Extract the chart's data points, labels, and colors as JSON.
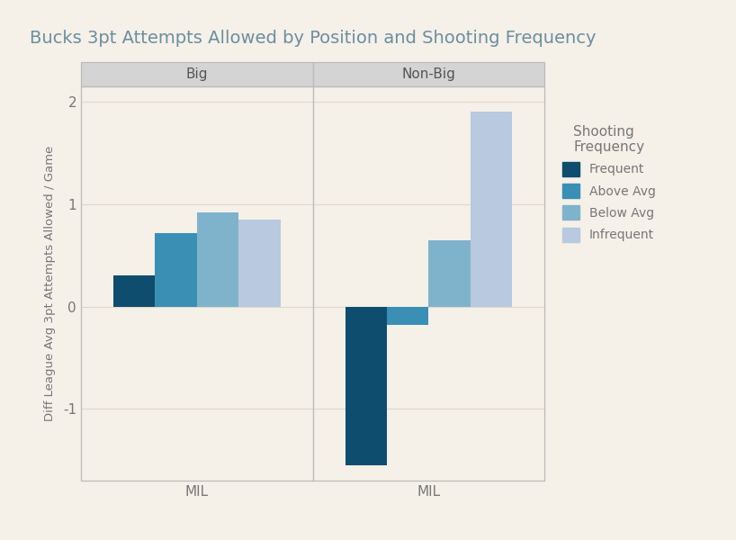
{
  "title": "Bucks 3pt Attempts Allowed by Position and Shooting Frequency",
  "panels": [
    "Big",
    "Non-Big"
  ],
  "x_label": "MIL",
  "y_label": "Diff League Avg 3pt Attempts Allowed / Game",
  "ylim": [
    -1.7,
    2.15
  ],
  "yticks": [
    -1,
    0,
    1,
    2
  ],
  "categories": [
    "Frequent",
    "Above Avg",
    "Below Avg",
    "Infrequent"
  ],
  "colors": [
    "#0e4d6e",
    "#3a8fb5",
    "#7fb3cc",
    "#b8c9e0"
  ],
  "big_values": [
    0.3,
    0.72,
    0.92,
    0.85
  ],
  "nonbig_values": [
    -1.55,
    -0.18,
    0.65,
    1.9
  ],
  "background_color": "#f5f0e8",
  "panel_header_color": "#d4d4d4",
  "bar_width": 0.18,
  "title_color": "#6b8fa0",
  "axis_label_color": "#777777",
  "tick_label_color": "#777777",
  "grid_color": "#e0d8cc",
  "legend_title": "Shooting\nFrequency",
  "spine_color": "#bbbbbb"
}
